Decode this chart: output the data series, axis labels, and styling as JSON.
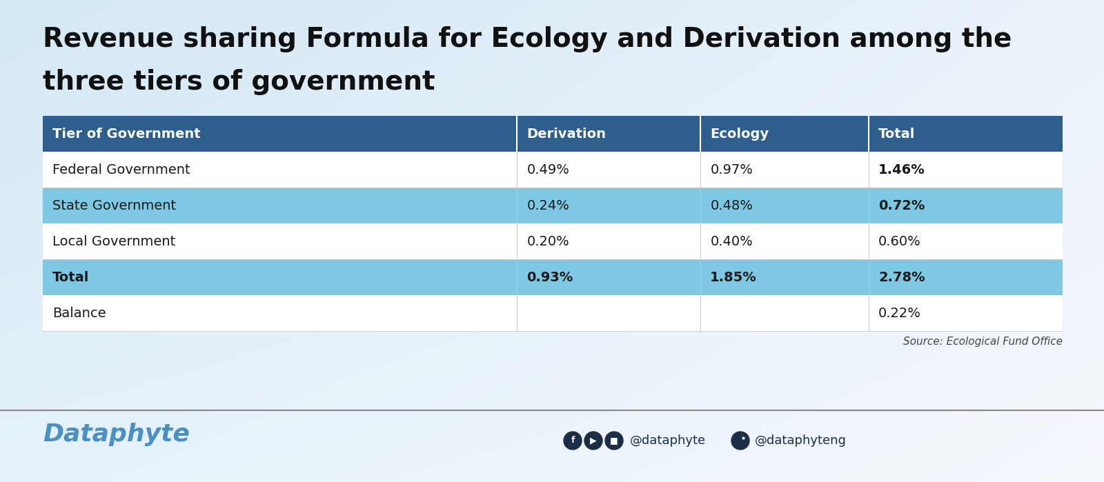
{
  "title_line1": "Revenue sharing Formula for Ecology and Derivation among the",
  "title_line2": "three tiers of government",
  "title_fontsize": 28,
  "title_color": "#111111",
  "bg_color_main": "#f0f7fc",
  "bg_color_top_left": "#daeaf5",
  "bg_color_white": "#ffffff",
  "header_bg": "#2e5f8c",
  "header_text_color": "#ffffff",
  "header_labels": [
    "Tier of Government",
    "Derivation",
    "Ecology",
    "Total"
  ],
  "rows": [
    {
      "label": "Federal Government",
      "derivation": "0.49%",
      "ecology": "0.97%",
      "total": "1.46%",
      "total_bold": true,
      "label_bold": false,
      "all_bold": false,
      "row_bg": "#ffffff"
    },
    {
      "label": "State Government",
      "derivation": "0.24%",
      "ecology": "0.48%",
      "total": "0.72%",
      "total_bold": true,
      "label_bold": false,
      "all_bold": false,
      "row_bg": "#7ec8e3"
    },
    {
      "label": "Local Government",
      "derivation": "0.20%",
      "ecology": "0.40%",
      "total": "0.60%",
      "total_bold": false,
      "label_bold": false,
      "all_bold": false,
      "row_bg": "#ffffff"
    },
    {
      "label": "Total",
      "derivation": "0.93%",
      "ecology": "1.85%",
      "total": "2.78%",
      "total_bold": true,
      "label_bold": true,
      "all_bold": true,
      "row_bg": "#7ec8e3"
    },
    {
      "label": "Balance",
      "derivation": "",
      "ecology": "",
      "total": "0.22%",
      "total_bold": false,
      "label_bold": false,
      "all_bold": false,
      "row_bg": "#ffffff"
    }
  ],
  "source_text": "Source: Ecological Fund Office",
  "dataphyte_color": "#4a90c4",
  "footer_text_color": "#1a2e4a",
  "divider_color": "#888888",
  "table_font_size": 14,
  "header_font_size": 14
}
